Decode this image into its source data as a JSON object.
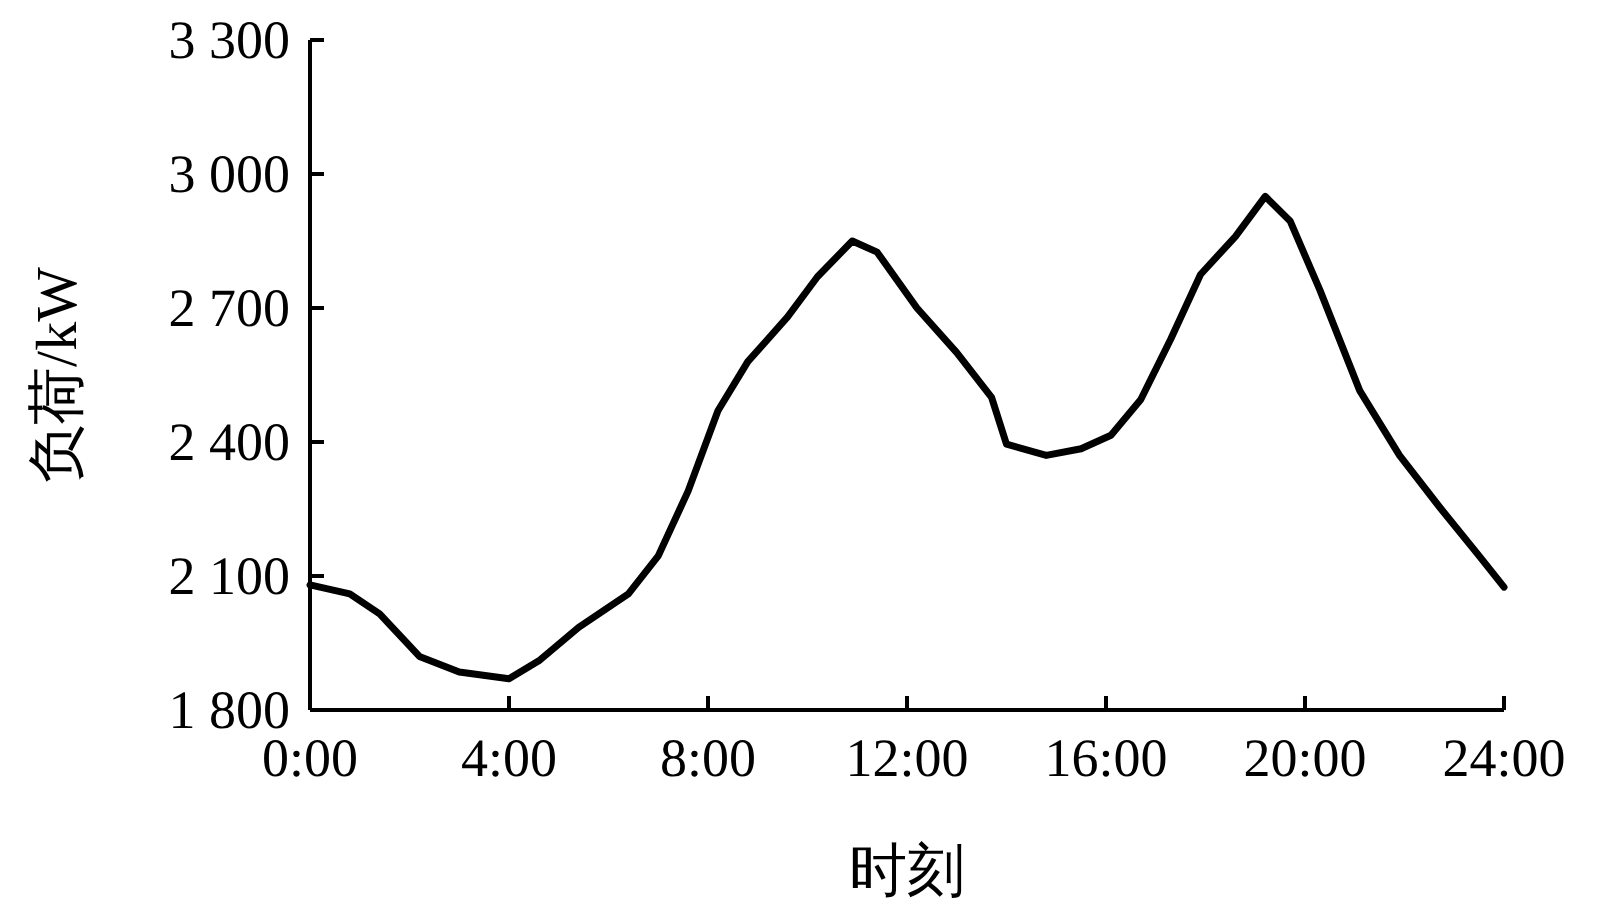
{
  "chart_data": {
    "type": "line",
    "xlabel": "时刻",
    "ylabel": "负荷/kW",
    "color": "#000000",
    "line_style": "solid",
    "x": [
      0,
      0.8,
      1.4,
      2.2,
      3,
      4,
      4.6,
      5.4,
      6.4,
      7,
      7.6,
      8.2,
      8.8,
      9.6,
      10.2,
      10.9,
      11.4,
      12.2,
      13,
      13.7,
      14,
      14.8,
      15.5,
      16.1,
      16.7,
      17.3,
      17.9,
      18.6,
      19.2,
      19.7,
      20.3,
      21.1,
      21.9,
      22.7,
      23.5,
      24
    ],
    "values": [
      2080,
      2060,
      2015,
      1920,
      1885,
      1870,
      1910,
      1985,
      2060,
      2145,
      2290,
      2470,
      2580,
      2680,
      2770,
      2850,
      2825,
      2700,
      2600,
      2500,
      2395,
      2370,
      2385,
      2415,
      2495,
      2630,
      2775,
      2860,
      2950,
      2895,
      2740,
      2515,
      2370,
      2255,
      2145,
      2075
    ],
    "xlim": [
      0,
      24
    ],
    "ylim": [
      1800,
      3300
    ],
    "xticks": [
      {
        "value": 0,
        "label": "0:00"
      },
      {
        "value": 4,
        "label": "4:00"
      },
      {
        "value": 8,
        "label": "8:00"
      },
      {
        "value": 12,
        "label": "12:00"
      },
      {
        "value": 16,
        "label": "16:00"
      },
      {
        "value": 20,
        "label": "20:00"
      },
      {
        "value": 24,
        "label": "24:00"
      }
    ],
    "yticks": [
      {
        "value": 1800,
        "label": "1 800"
      },
      {
        "value": 2100,
        "label": "2 100"
      },
      {
        "value": 2400,
        "label": "2 400"
      },
      {
        "value": 2700,
        "label": "2 700"
      },
      {
        "value": 3000,
        "label": "3 000"
      },
      {
        "value": 3300,
        "label": "3 300"
      }
    ]
  }
}
